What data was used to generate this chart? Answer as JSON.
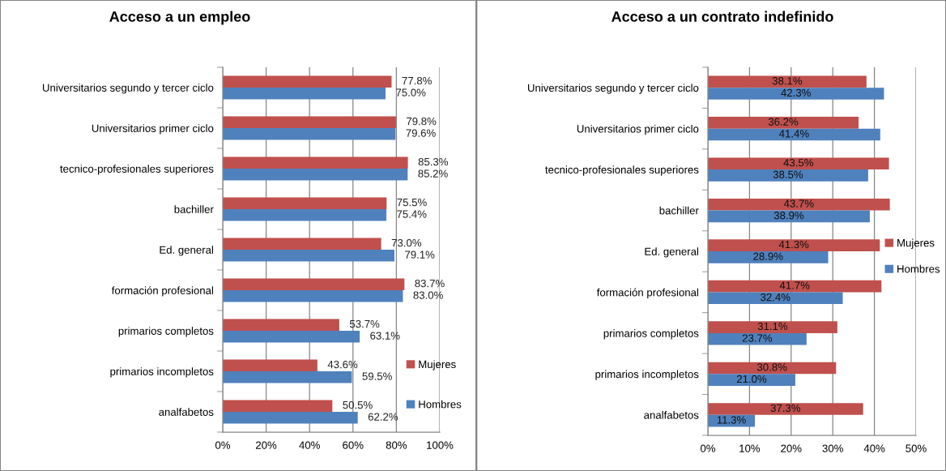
{
  "chart_data": [
    {
      "type": "bar",
      "orientation": "horizontal",
      "title": "Acceso a un empleo",
      "categories": [
        "Universitarios segundo y tercer ciclo",
        "Universitarios primer ciclo",
        "tecnico-profesionales superiores",
        "bachiller",
        "Ed. general",
        "formación profesional",
        "primarios completos",
        "primarios incompletos",
        "analfabetos"
      ],
      "series": [
        {
          "name": "Mujeres",
          "color": "#c0504d",
          "values": [
            77.8,
            79.8,
            85.3,
            75.5,
            73.0,
            83.7,
            53.7,
            43.6,
            50.5
          ],
          "value_labels": [
            "77.8%",
            "79.8%",
            "85.3%",
            "75.5%",
            "73.0%",
            "83.7%",
            "53.7%",
            "43.6%",
            "50.5%"
          ]
        },
        {
          "name": "Hombres",
          "color": "#4f81bd",
          "values": [
            75.0,
            79.6,
            85.2,
            75.4,
            79.1,
            83.0,
            63.1,
            59.5,
            62.2
          ],
          "value_labels": [
            "75.0%",
            "79.6%",
            "85.2%",
            "75.4%",
            "79.1%",
            "83.0%",
            "63.1%",
            "59.5%",
            "62.2%"
          ]
        }
      ],
      "xlim": [
        0,
        100
      ],
      "xticks": [
        {
          "value": 0,
          "label": "0%"
        },
        {
          "value": 20,
          "label": "20%"
        },
        {
          "value": 40,
          "label": "40%"
        },
        {
          "value": 60,
          "label": "60%"
        },
        {
          "value": 80,
          "label": "80%"
        },
        {
          "value": 100,
          "label": "100%"
        }
      ],
      "grid": "x",
      "legend": "bottom right"
    },
    {
      "type": "bar",
      "orientation": "horizontal",
      "title": "Acceso a un contrato indefinido",
      "categories": [
        "Universitarios segundo y tercer ciclo",
        "Universitarios primer ciclo",
        "tecnico-profesionales superiores",
        "bachiller",
        "Ed. general",
        "formación profesional",
        "primarios completos",
        "primarios incompletos",
        "analfabetos"
      ],
      "series": [
        {
          "name": "Mujeres",
          "color": "#c0504d",
          "values": [
            38.1,
            36.2,
            43.5,
            43.7,
            41.3,
            41.7,
            31.1,
            30.8,
            37.3
          ],
          "value_labels": [
            "38.1%",
            "36.2%",
            "43.5%",
            "43.7%",
            "41.3%",
            "41.7%",
            "31.1%",
            "30.8%",
            "37.3%"
          ]
        },
        {
          "name": "Hombres",
          "color": "#4f81bd",
          "values": [
            42.3,
            41.4,
            38.5,
            38.9,
            28.9,
            32.4,
            23.7,
            21.0,
            11.3
          ],
          "value_labels": [
            "42.3%",
            "41.4%",
            "38.5%",
            "38.9%",
            "28.9%",
            "32.4%",
            "23.7%",
            "21.0%",
            "11.3%"
          ]
        }
      ],
      "xlim": [
        0,
        50
      ],
      "xticks": [
        {
          "value": 0,
          "label": "0%"
        },
        {
          "value": 10,
          "label": "10%"
        },
        {
          "value": 20,
          "label": "20%"
        },
        {
          "value": 30,
          "label": "30%"
        },
        {
          "value": 40,
          "label": "40%"
        },
        {
          "value": 50,
          "label": "50%"
        }
      ],
      "grid": "x",
      "legend": "right"
    }
  ]
}
